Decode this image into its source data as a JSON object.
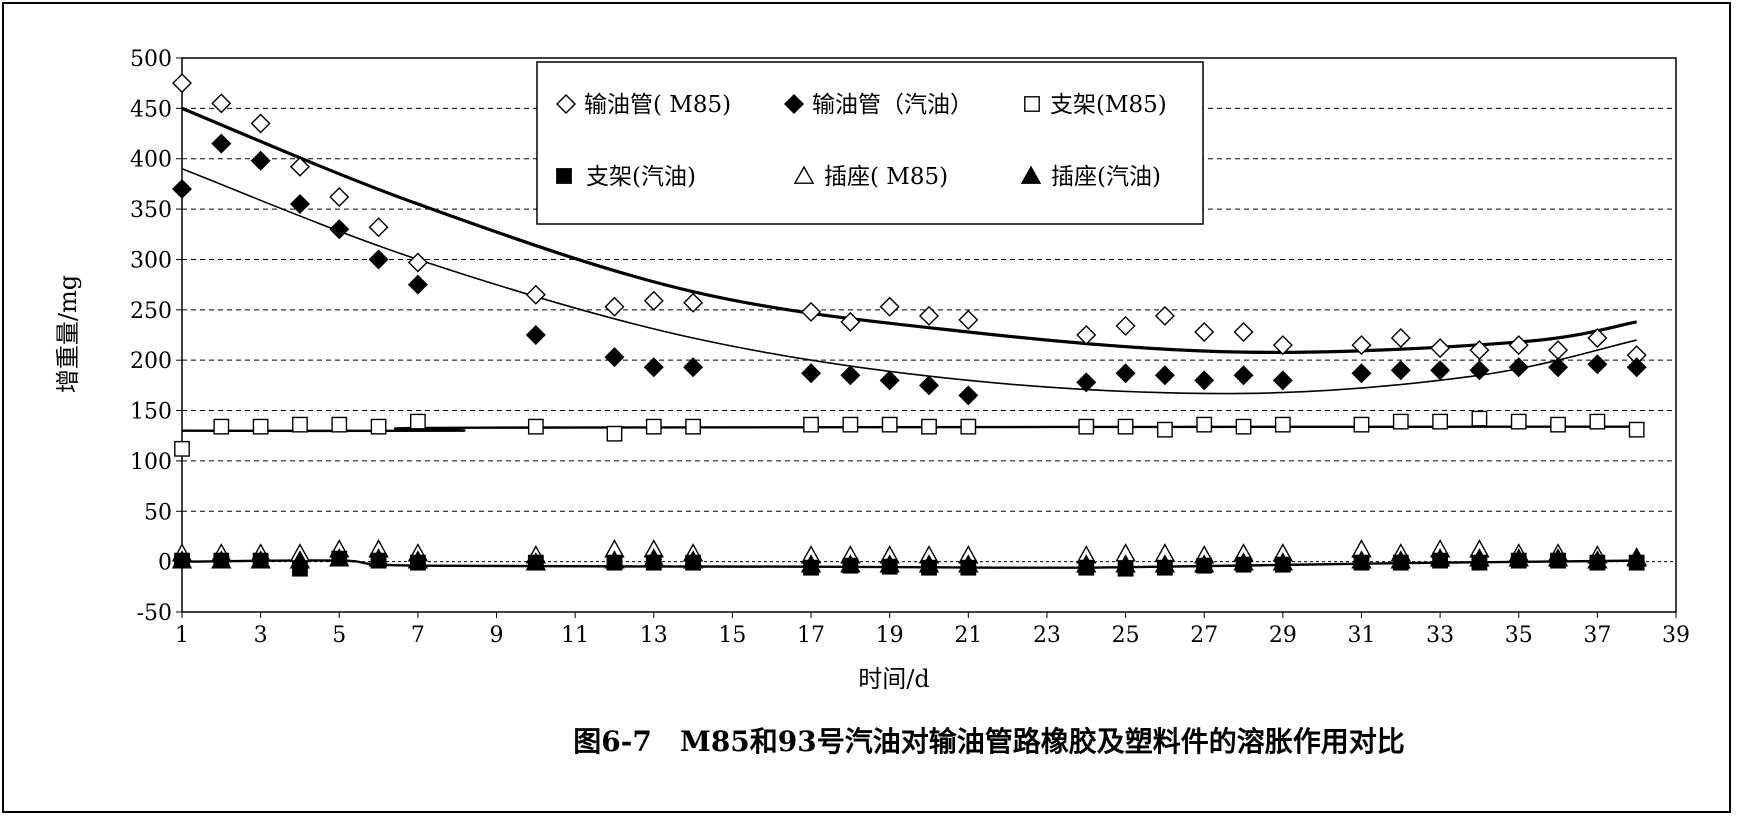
{
  "chart_data": {
    "type": "scatter",
    "caption": "图6-7　M85和93号汽油对输油管路橡胶及塑料件的溶胀作用对比",
    "xlabel": "时间/d",
    "ylabel": "增重量/mg",
    "xlim": [
      1,
      39
    ],
    "ylim": [
      -50,
      500
    ],
    "xticks": [
      "1",
      "3",
      "5",
      "7",
      "9",
      "11",
      "13",
      "15",
      "17",
      "19",
      "21",
      "23",
      "25",
      "27",
      "29",
      "31",
      "33",
      "35",
      "37",
      "39"
    ],
    "yticks": [
      "-50",
      "0",
      "50",
      "100",
      "150",
      "200",
      "250",
      "300",
      "350",
      "400",
      "450",
      "500"
    ],
    "grid": "horizontal dashed",
    "legend_position": "top-center",
    "series": [
      {
        "name": "输油管( M85)",
        "marker": "diamond-open",
        "points": [
          [
            1,
            475
          ],
          [
            2,
            455
          ],
          [
            3,
            435
          ],
          [
            4,
            392
          ],
          [
            5,
            362
          ],
          [
            6,
            332
          ],
          [
            7,
            297
          ],
          [
            10,
            265
          ],
          [
            12,
            253
          ],
          [
            13,
            259
          ],
          [
            14,
            257
          ],
          [
            17,
            248
          ],
          [
            18,
            238
          ],
          [
            19,
            253
          ],
          [
            20,
            244
          ],
          [
            21,
            240
          ],
          [
            24,
            225
          ],
          [
            25,
            234
          ],
          [
            26,
            244
          ],
          [
            27,
            228
          ],
          [
            28,
            228
          ],
          [
            29,
            215
          ],
          [
            31,
            215
          ],
          [
            32,
            222
          ],
          [
            33,
            212
          ],
          [
            34,
            210
          ],
          [
            35,
            215
          ],
          [
            36,
            210
          ],
          [
            37,
            222
          ],
          [
            38,
            205
          ]
        ]
      },
      {
        "name": "输油管（汽油）",
        "marker": "diamond-filled",
        "points": [
          [
            1,
            370
          ],
          [
            2,
            415
          ],
          [
            3,
            398
          ],
          [
            4,
            355
          ],
          [
            5,
            330
          ],
          [
            6,
            300
          ],
          [
            7,
            275
          ],
          [
            10,
            225
          ],
          [
            12,
            203
          ],
          [
            13,
            193
          ],
          [
            14,
            193
          ],
          [
            17,
            187
          ],
          [
            18,
            185
          ],
          [
            19,
            180
          ],
          [
            20,
            175
          ],
          [
            21,
            165
          ],
          [
            24,
            178
          ],
          [
            25,
            187
          ],
          [
            26,
            185
          ],
          [
            27,
            180
          ],
          [
            28,
            185
          ],
          [
            29,
            180
          ],
          [
            31,
            187
          ],
          [
            32,
            190
          ],
          [
            33,
            190
          ],
          [
            34,
            190
          ],
          [
            35,
            193
          ],
          [
            36,
            193
          ],
          [
            37,
            196
          ],
          [
            38,
            193
          ]
        ]
      },
      {
        "name": "支架(M85)",
        "marker": "square-open",
        "points": [
          [
            1,
            112
          ],
          [
            2,
            134
          ],
          [
            3,
            134
          ],
          [
            4,
            136
          ],
          [
            5,
            136
          ],
          [
            6,
            134
          ],
          [
            7,
            139
          ],
          [
            10,
            134
          ],
          [
            12,
            127
          ],
          [
            13,
            134
          ],
          [
            14,
            134
          ],
          [
            17,
            136
          ],
          [
            18,
            136
          ],
          [
            19,
            136
          ],
          [
            20,
            134
          ],
          [
            21,
            134
          ],
          [
            24,
            134
          ],
          [
            25,
            134
          ],
          [
            26,
            131
          ],
          [
            27,
            136
          ],
          [
            28,
            134
          ],
          [
            29,
            136
          ],
          [
            31,
            136
          ],
          [
            32,
            139
          ],
          [
            33,
            139
          ],
          [
            34,
            142
          ],
          [
            35,
            139
          ],
          [
            36,
            136
          ],
          [
            37,
            139
          ],
          [
            38,
            131
          ]
        ]
      },
      {
        "name": "支架(汽油)",
        "marker": "square-filled",
        "points": [
          [
            1,
            1
          ],
          [
            2,
            1
          ],
          [
            3,
            1
          ],
          [
            4,
            -7
          ],
          [
            5,
            3
          ],
          [
            6,
            1
          ],
          [
            7,
            -1
          ],
          [
            10,
            -1
          ],
          [
            12,
            -1
          ],
          [
            13,
            -1
          ],
          [
            14,
            -1
          ],
          [
            17,
            -6
          ],
          [
            18,
            -4
          ],
          [
            19,
            -5
          ],
          [
            20,
            -6
          ],
          [
            21,
            -6
          ],
          [
            24,
            -6
          ],
          [
            25,
            -7
          ],
          [
            26,
            -6
          ],
          [
            27,
            -4
          ],
          [
            28,
            -3
          ],
          [
            29,
            -3
          ],
          [
            31,
            -1
          ],
          [
            32,
            -1
          ],
          [
            33,
            1
          ],
          [
            34,
            -1
          ],
          [
            35,
            1
          ],
          [
            36,
            1
          ],
          [
            37,
            -1
          ],
          [
            38,
            -1
          ]
        ]
      },
      {
        "name": "插座( M85)",
        "marker": "triangle-open",
        "points": [
          [
            1,
            8
          ],
          [
            2,
            8
          ],
          [
            3,
            8
          ],
          [
            4,
            8
          ],
          [
            5,
            12
          ],
          [
            6,
            12
          ],
          [
            7,
            8
          ],
          [
            10,
            6
          ],
          [
            12,
            12
          ],
          [
            13,
            12
          ],
          [
            14,
            8
          ],
          [
            17,
            6
          ],
          [
            18,
            6
          ],
          [
            19,
            6
          ],
          [
            20,
            6
          ],
          [
            21,
            6
          ],
          [
            24,
            6
          ],
          [
            25,
            8
          ],
          [
            26,
            8
          ],
          [
            27,
            6
          ],
          [
            28,
            8
          ],
          [
            29,
            8
          ],
          [
            31,
            12
          ],
          [
            32,
            8
          ],
          [
            33,
            12
          ],
          [
            34,
            12
          ],
          [
            35,
            8
          ],
          [
            36,
            8
          ],
          [
            37,
            6
          ],
          [
            38,
            4
          ]
        ]
      },
      {
        "name": "插座(汽油)",
        "marker": "triangle-filled",
        "points": [
          [
            1,
            1
          ],
          [
            2,
            1
          ],
          [
            3,
            1
          ],
          [
            4,
            1
          ],
          [
            5,
            3
          ],
          [
            6,
            3
          ],
          [
            7,
            1
          ],
          [
            10,
            -1
          ],
          [
            12,
            1
          ],
          [
            13,
            3
          ],
          [
            14,
            1
          ],
          [
            17,
            -3
          ],
          [
            18,
            -3
          ],
          [
            19,
            -3
          ],
          [
            20,
            -3
          ],
          [
            21,
            -3
          ],
          [
            24,
            -3
          ],
          [
            25,
            -3
          ],
          [
            26,
            -3
          ],
          [
            27,
            -3
          ],
          [
            28,
            -1
          ],
          [
            29,
            -1
          ],
          [
            31,
            1
          ],
          [
            32,
            1
          ],
          [
            33,
            3
          ],
          [
            34,
            3
          ],
          [
            35,
            3
          ],
          [
            36,
            3
          ],
          [
            37,
            1
          ],
          [
            38,
            3
          ]
        ]
      }
    ],
    "trendlines": [
      {
        "series": "输油管( M85)",
        "style": "thick",
        "points": [
          [
            1,
            450
          ],
          [
            7,
            355
          ],
          [
            14,
            268
          ],
          [
            21,
            228
          ],
          [
            28,
            208
          ],
          [
            35,
            218
          ],
          [
            38,
            238
          ]
        ]
      },
      {
        "series": "输油管（汽油）",
        "style": "thin",
        "points": [
          [
            1,
            390
          ],
          [
            7,
            300
          ],
          [
            14,
            222
          ],
          [
            21,
            180
          ],
          [
            28,
            167
          ],
          [
            34,
            185
          ],
          [
            38,
            220
          ]
        ]
      },
      {
        "series": "支架(M85)",
        "style": "medium",
        "points": [
          [
            1,
            130
          ],
          [
            8,
            130
          ],
          [
            8.5,
            133
          ],
          [
            38,
            134
          ]
        ]
      },
      {
        "series": "支架(汽油)",
        "style": "medium",
        "points": [
          [
            1,
            0
          ],
          [
            5,
            1
          ],
          [
            7,
            -4
          ],
          [
            17,
            -5
          ],
          [
            24,
            -6
          ],
          [
            31,
            -2
          ],
          [
            38,
            1
          ]
        ]
      }
    ]
  }
}
